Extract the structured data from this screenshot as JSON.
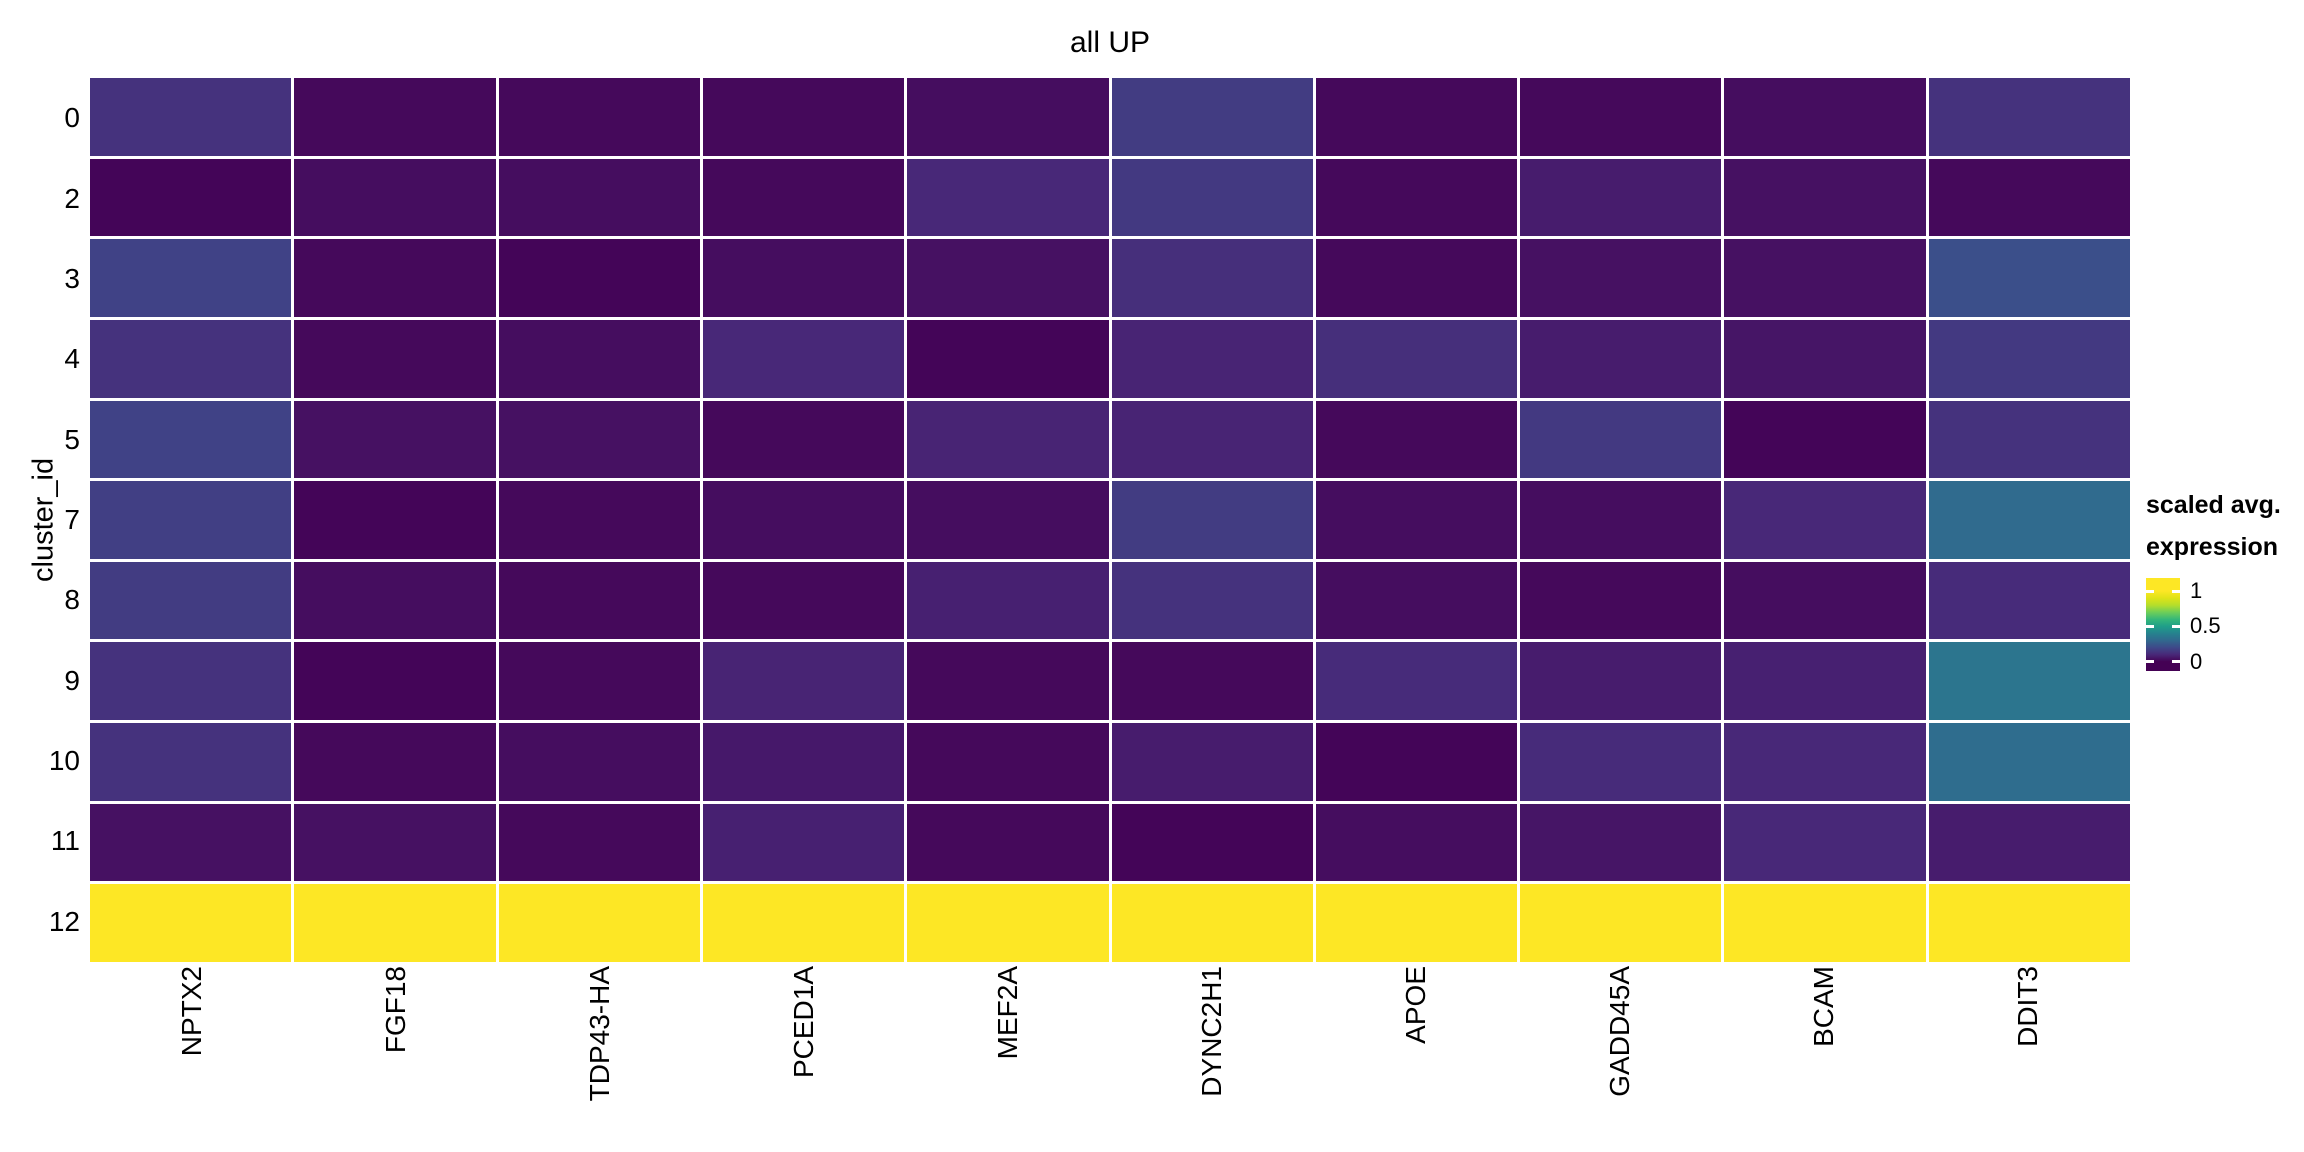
{
  "figure": {
    "title": "all UP",
    "y_axis_title": "cluster_id",
    "legend": {
      "title_lines": [
        "scaled avg.",
        "expression"
      ],
      "tick_labels": [
        "1",
        "0.5",
        "0"
      ]
    }
  },
  "chart_data": {
    "type": "heatmap",
    "title": "all UP",
    "xlabel": "",
    "ylabel": "cluster_id",
    "columns": [
      "NPTX2",
      "FGF18",
      "TDP43-HA",
      "PCED1A",
      "MEF2A",
      "DYNC2H1",
      "APOE",
      "GADD45A",
      "BCAM",
      "DDIT3"
    ],
    "rows": [
      "0",
      "2",
      "3",
      "4",
      "5",
      "7",
      "8",
      "9",
      "10",
      "11",
      "12"
    ],
    "values": [
      [
        0.13,
        0.02,
        0.02,
        0.02,
        0.03,
        0.16,
        0.02,
        0.02,
        0.03,
        0.13
      ],
      [
        0.01,
        0.03,
        0.03,
        0.02,
        0.1,
        0.15,
        0.02,
        0.07,
        0.04,
        0.02
      ],
      [
        0.18,
        0.02,
        0.01,
        0.03,
        0.04,
        0.12,
        0.02,
        0.04,
        0.04,
        0.22
      ],
      [
        0.13,
        0.02,
        0.03,
        0.1,
        0.01,
        0.09,
        0.12,
        0.07,
        0.05,
        0.15
      ],
      [
        0.18,
        0.04,
        0.04,
        0.02,
        0.09,
        0.09,
        0.02,
        0.15,
        0.01,
        0.13
      ],
      [
        0.17,
        0.01,
        0.02,
        0.03,
        0.03,
        0.16,
        0.03,
        0.03,
        0.1,
        0.31
      ],
      [
        0.16,
        0.03,
        0.02,
        0.02,
        0.08,
        0.13,
        0.03,
        0.02,
        0.03,
        0.11
      ],
      [
        0.13,
        0.01,
        0.02,
        0.09,
        0.02,
        0.02,
        0.11,
        0.07,
        0.08,
        0.35
      ],
      [
        0.13,
        0.02,
        0.03,
        0.06,
        0.02,
        0.07,
        0.01,
        0.11,
        0.1,
        0.32
      ],
      [
        0.04,
        0.04,
        0.02,
        0.08,
        0.02,
        0.01,
        0.03,
        0.05,
        0.1,
        0.07
      ],
      [
        1,
        1,
        1,
        1,
        1,
        1,
        1,
        1,
        1,
        1
      ]
    ],
    "colormap": "viridis",
    "color_scale": {
      "min": 0,
      "max": 1,
      "legend_title": "scaled avg. expression",
      "legend_ticks": [
        1,
        0.5,
        0
      ]
    },
    "layout": {
      "legend_position": "right",
      "grid_gap_color": "#ffffff",
      "x_label_rotation_deg": 90,
      "background": "#ffffff"
    }
  },
  "colors": {
    "background": "#ffffff",
    "text": "#000000",
    "gridline": "#ffffff",
    "viridis_stops": [
      "#440154",
      "#482878",
      "#3e4989",
      "#31688e",
      "#26828e",
      "#1f9e89",
      "#35b779",
      "#6ece58",
      "#b5de2b",
      "#dfe318",
      "#fde725"
    ]
  }
}
